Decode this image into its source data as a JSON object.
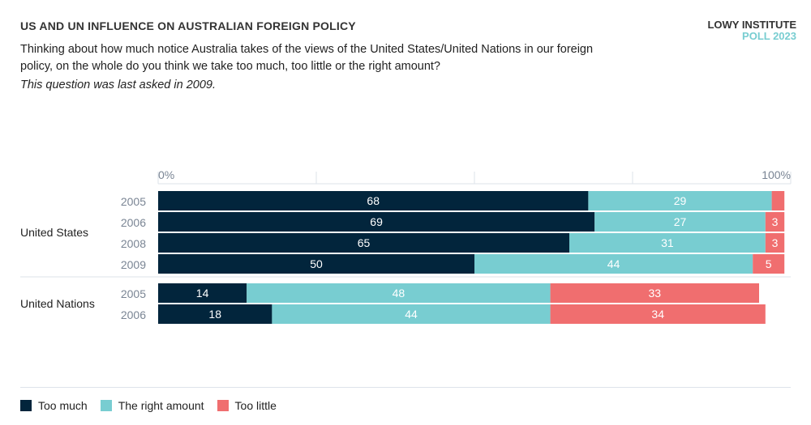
{
  "header": {
    "title": "US AND UN INFLUENCE ON AUSTRALIAN FOREIGN POLICY",
    "brand_line1": "LOWY INSTITUTE",
    "brand_line2": "POLL 2023",
    "question": "Thinking about how much notice Australia takes of the views of the United States/United Nations in our foreign policy, on the whole do you think we take too much, too little or the right amount?",
    "note": "This question was last asked in 2009."
  },
  "chart_data": {
    "type": "bar",
    "orientation": "horizontal",
    "stacked": true,
    "xlim": [
      0,
      100
    ],
    "tick_labels": [
      "0%",
      "100%"
    ],
    "grid": true,
    "colors": {
      "Too much": "#02253c",
      "The right amount": "#78cdd1",
      "Too little": "#f06e6f"
    },
    "series_names": [
      "Too much",
      "The right amount",
      "Too little"
    ],
    "groups": [
      {
        "name": "United States",
        "rows": [
          {
            "year": "2005",
            "values": [
              68,
              29,
              2
            ],
            "labels": [
              "68",
              "29",
              ""
            ]
          },
          {
            "year": "2006",
            "values": [
              69,
              27,
              3
            ],
            "labels": [
              "69",
              "27",
              "3"
            ]
          },
          {
            "year": "2008",
            "values": [
              65,
              31,
              3
            ],
            "labels": [
              "65",
              "31",
              "3"
            ]
          },
          {
            "year": "2009",
            "values": [
              50,
              44,
              5
            ],
            "labels": [
              "50",
              "44",
              "5"
            ]
          }
        ]
      },
      {
        "name": "United Nations",
        "rows": [
          {
            "year": "2005",
            "values": [
              14,
              48,
              33
            ],
            "labels": [
              "14",
              "48",
              "33"
            ]
          },
          {
            "year": "2006",
            "values": [
              18,
              44,
              34
            ],
            "labels": [
              "18",
              "44",
              "34"
            ]
          }
        ]
      }
    ],
    "legend_position": "bottom-left"
  }
}
